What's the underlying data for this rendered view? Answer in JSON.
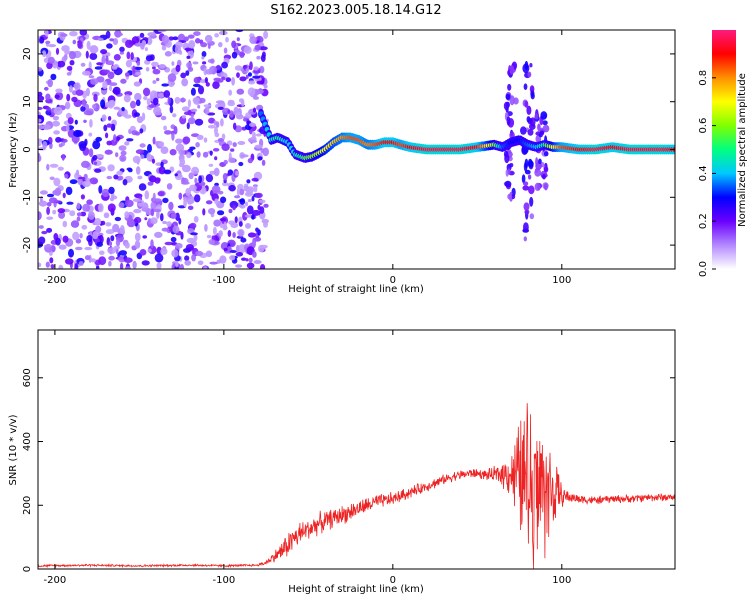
{
  "title": "S162.2023.005.18.14.G12",
  "colors": {
    "snr_line": "#ee2222",
    "axis": "#000000",
    "colormap": [
      "#ffffff",
      "#b388ff",
      "#6a00ff",
      "#0000ff",
      "#00c8ff",
      "#00ff80",
      "#80ff00",
      "#ffff00",
      "#ff9000",
      "#ff0000",
      "#ff1a80"
    ]
  },
  "chart_data": [
    {
      "type": "heatmap",
      "title": "S162.2023.005.18.14.G12",
      "xlabel": "Height of straight line (km)",
      "ylabel": "Frequency (Hz)",
      "xlim": [
        -210,
        167
      ],
      "ylim": [
        -25,
        25
      ],
      "x_ticks": [
        -200,
        -100,
        0,
        100
      ],
      "y_ticks": [
        -20,
        -10,
        0,
        10,
        20
      ],
      "x_tick_labels": [
        "-200",
        "-100",
        "0",
        "100"
      ],
      "y_tick_labels": [
        "-20",
        "-10",
        "0",
        "10",
        "20"
      ],
      "grid": false,
      "colorbar": {
        "label": "Normalized spectral amplitude",
        "range": [
          0,
          1
        ],
        "ticks": [
          0.0,
          0.2,
          0.4,
          0.6,
          0.8
        ],
        "tick_labels": [
          "0.0",
          "0.2",
          "0.4",
          "0.6",
          "0.8"
        ]
      },
      "noise_region_x": [
        -210,
        -75
      ],
      "tone_track": {
        "x": [
          -78,
          -72,
          -68,
          -62,
          -58,
          -52,
          -48,
          -44,
          -40,
          -35,
          -30,
          -25,
          -20,
          -15,
          -10,
          -5,
          0,
          5,
          10,
          20,
          30,
          40,
          50,
          60,
          65,
          70,
          75,
          80,
          85,
          90,
          95,
          100,
          110,
          120,
          130,
          140,
          150,
          160,
          167
        ],
        "freq": [
          7.5,
          2.0,
          2.5,
          1.5,
          -1.0,
          -1.8,
          -1.5,
          -0.8,
          0.0,
          1.5,
          2.5,
          2.5,
          2.0,
          1.0,
          1.0,
          1.5,
          1.5,
          1.0,
          0.5,
          0.0,
          0.0,
          0.0,
          0.5,
          1.0,
          0.5,
          1.5,
          2.0,
          1.0,
          0.5,
          1.0,
          0.5,
          0.5,
          0.0,
          0.0,
          0.5,
          0.0,
          0.0,
          0.0,
          0.0
        ],
        "amplitude": [
          0.35,
          0.45,
          0.5,
          0.4,
          0.45,
          0.55,
          0.6,
          0.65,
          0.7,
          0.75,
          0.8,
          0.85,
          0.85,
          0.8,
          0.85,
          0.9,
          0.9,
          0.85,
          0.9,
          0.95,
          0.95,
          0.95,
          0.9,
          0.6,
          0.35,
          0.3,
          0.3,
          0.35,
          0.4,
          0.5,
          0.7,
          0.85,
          0.9,
          0.95,
          0.9,
          0.95,
          0.95,
          0.95,
          0.9
        ]
      },
      "spread_regions": [
        {
          "x": 70,
          "freq_range": [
            -10,
            18
          ]
        },
        {
          "x": 80,
          "freq_range": [
            -22,
            18
          ]
        },
        {
          "x": 88,
          "freq_range": [
            -8,
            8
          ]
        }
      ]
    },
    {
      "type": "line",
      "xlabel": "Height of straight line (km)",
      "ylabel": "SNR (10 * v/v)",
      "xlim": [
        -210,
        167
      ],
      "ylim": [
        0,
        750
      ],
      "x_ticks": [
        -200,
        -100,
        0,
        100
      ],
      "y_ticks": [
        0,
        200,
        400,
        600
      ],
      "x_tick_labels": [
        "-200",
        "-100",
        "0",
        "100"
      ],
      "y_tick_labels": [
        "0",
        "200",
        "400",
        "600"
      ],
      "grid": false,
      "series": [
        {
          "x": [
            -210,
            -180,
            -150,
            -120,
            -100,
            -80,
            -75,
            -70,
            -65,
            -60,
            -55,
            -50,
            -45,
            -40,
            -35,
            -30,
            -25,
            -20,
            -15,
            -10,
            -5,
            0,
            5,
            10,
            15,
            20,
            25,
            30,
            35,
            40,
            45,
            50,
            55,
            60,
            65,
            70,
            75,
            80,
            85,
            90,
            95,
            100,
            105,
            110,
            120,
            130,
            140,
            150,
            160,
            167
          ],
          "y": [
            10,
            12,
            10,
            12,
            10,
            12,
            20,
            40,
            60,
            90,
            110,
            125,
            140,
            150,
            160,
            170,
            180,
            190,
            200,
            210,
            215,
            220,
            230,
            240,
            250,
            260,
            270,
            280,
            290,
            295,
            300,
            300,
            295,
            295,
            300,
            300,
            290,
            280,
            260,
            250,
            240,
            230,
            225,
            220,
            215,
            220,
            220,
            225,
            225,
            225
          ],
          "spike_amp": [
            4,
            4,
            4,
            4,
            4,
            4,
            8,
            20,
            40,
            50,
            45,
            40,
            40,
            38,
            35,
            35,
            35,
            30,
            30,
            28,
            25,
            25,
            22,
            22,
            20,
            20,
            20,
            18,
            18,
            18,
            18,
            18,
            18,
            30,
            50,
            90,
            220,
            320,
            300,
            250,
            150,
            40,
            20,
            18,
            15,
            15,
            15,
            15,
            15,
            15
          ]
        }
      ]
    }
  ]
}
